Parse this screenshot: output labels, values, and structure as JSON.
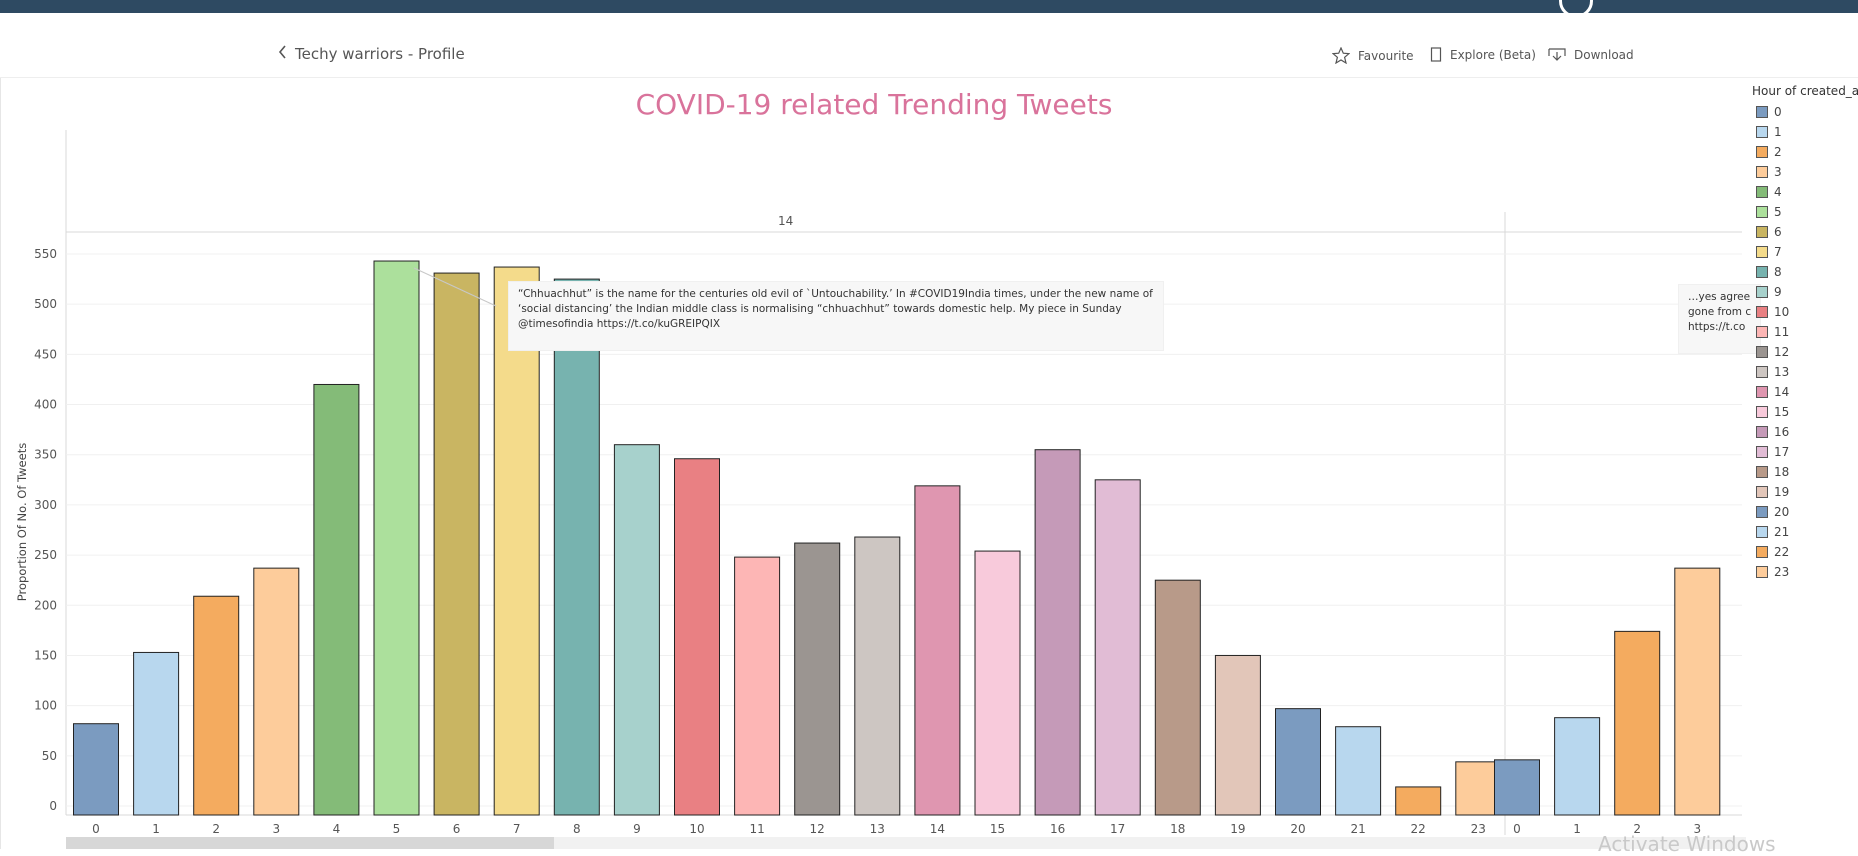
{
  "header": {
    "back_label": "Techy warriors - Profile",
    "favourite_label": "Favourite",
    "explore_label": "Explore (Beta)",
    "download_label": "Download"
  },
  "facet": {
    "label": "14"
  },
  "legend": {
    "title": "Hour of created_at",
    "items": [
      {
        "label": "0",
        "color": "#7b9bc0"
      },
      {
        "label": "1",
        "color": "#b8d7ee"
      },
      {
        "label": "2",
        "color": "#f4ab5f"
      },
      {
        "label": "3",
        "color": "#fdcc9b"
      },
      {
        "label": "4",
        "color": "#84bb78"
      },
      {
        "label": "5",
        "color": "#ace09c"
      },
      {
        "label": "6",
        "color": "#c9b562"
      },
      {
        "label": "7",
        "color": "#f4db8b"
      },
      {
        "label": "8",
        "color": "#77b3af"
      },
      {
        "label": "9",
        "color": "#a7d1cc"
      },
      {
        "label": "10",
        "color": "#e98083"
      },
      {
        "label": "11",
        "color": "#fdb6b5"
      },
      {
        "label": "12",
        "color": "#9b9591"
      },
      {
        "label": "13",
        "color": "#cdc6c2"
      },
      {
        "label": "14",
        "color": "#df96b0"
      },
      {
        "label": "15",
        "color": "#f8cadb"
      },
      {
        "label": "16",
        "color": "#c59ab8"
      },
      {
        "label": "17",
        "color": "#e1bcd5"
      },
      {
        "label": "18",
        "color": "#b89a89"
      },
      {
        "label": "19",
        "color": "#e2c6b9"
      },
      {
        "label": "20",
        "color": "#7b9bc0"
      },
      {
        "label": "21",
        "color": "#b8d7ee"
      },
      {
        "label": "22",
        "color": "#f4ab5f"
      },
      {
        "label": "23",
        "color": "#fdcc9b"
      }
    ]
  },
  "tooltip": {
    "main": "“Chhuachhut” is the name for the centuries old evil of `Untouchability.’ In #COVID19India times, under the new name of ‘social distancing’ the Indian middle class is normalising “chhuachhut” towards domestic help. My piece in Sunday @timesofindia https://t.co/kuGREIPQIX",
    "right": "…yes agree gone from c https://t.co"
  },
  "watermark": "Activate Windows",
  "chart_data": {
    "type": "bar",
    "title": "COVID-19 related Trending Tweets",
    "xlabel": "",
    "ylabel": "Proportion Of No. Of Tweets",
    "ylim": [
      0,
      550
    ],
    "yticks": [
      0,
      50,
      100,
      150,
      200,
      250,
      300,
      350,
      400,
      450,
      500,
      550
    ],
    "grid": true,
    "legend_position": "right",
    "panels": [
      {
        "label": "14",
        "categories": [
          "0",
          "1",
          "2",
          "3",
          "4",
          "5",
          "6",
          "7",
          "8",
          "9",
          "10",
          "11",
          "12",
          "13",
          "14",
          "15",
          "16",
          "17",
          "18",
          "19",
          "20",
          "21",
          "22",
          "23"
        ],
        "values": [
          82,
          153,
          209,
          237,
          420,
          543,
          531,
          537,
          525,
          360,
          346,
          248,
          262,
          268,
          319,
          254,
          355,
          325,
          225,
          150,
          97,
          79,
          19,
          44
        ]
      },
      {
        "label": "",
        "categories": [
          "0",
          "1",
          "2",
          "3"
        ],
        "values": [
          46,
          88,
          174,
          237
        ]
      }
    ]
  }
}
